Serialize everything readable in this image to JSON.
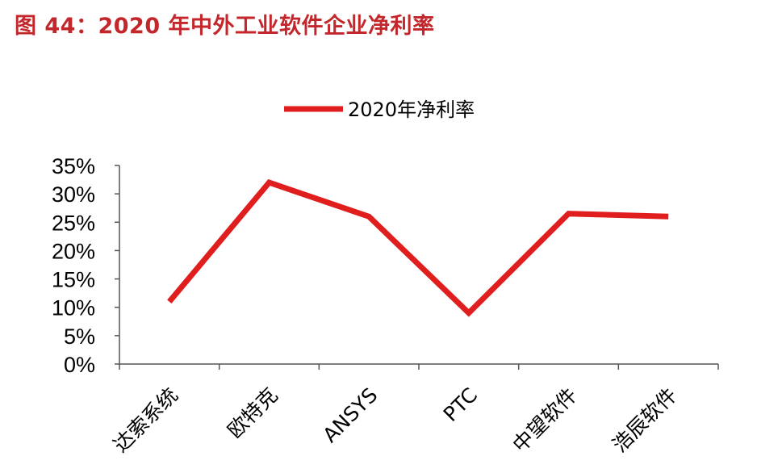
{
  "figure_title": "图 44：2020 年中外工业软件企业净利率",
  "colors": {
    "title": "#c3272b",
    "series": "#e01e1e",
    "axis": "#555555"
  },
  "chart_data": {
    "type": "line",
    "title": "图 44：2020 年中外工业软件企业净利率",
    "xlabel": "",
    "ylabel": "",
    "categories": [
      "达索系统",
      "欧特克",
      "ANSYS",
      "PTC",
      "中望软件",
      "浩辰软件"
    ],
    "series": [
      {
        "name": "2020年净利率",
        "values": [
          0.11,
          0.32,
          0.26,
          0.09,
          0.265,
          0.26
        ]
      }
    ],
    "ylim": [
      0,
      0.35
    ],
    "yticks": [
      "0%",
      "5%",
      "10%",
      "15%",
      "20%",
      "25%",
      "30%",
      "35%"
    ],
    "grid": false,
    "legend_position": "top-center"
  }
}
